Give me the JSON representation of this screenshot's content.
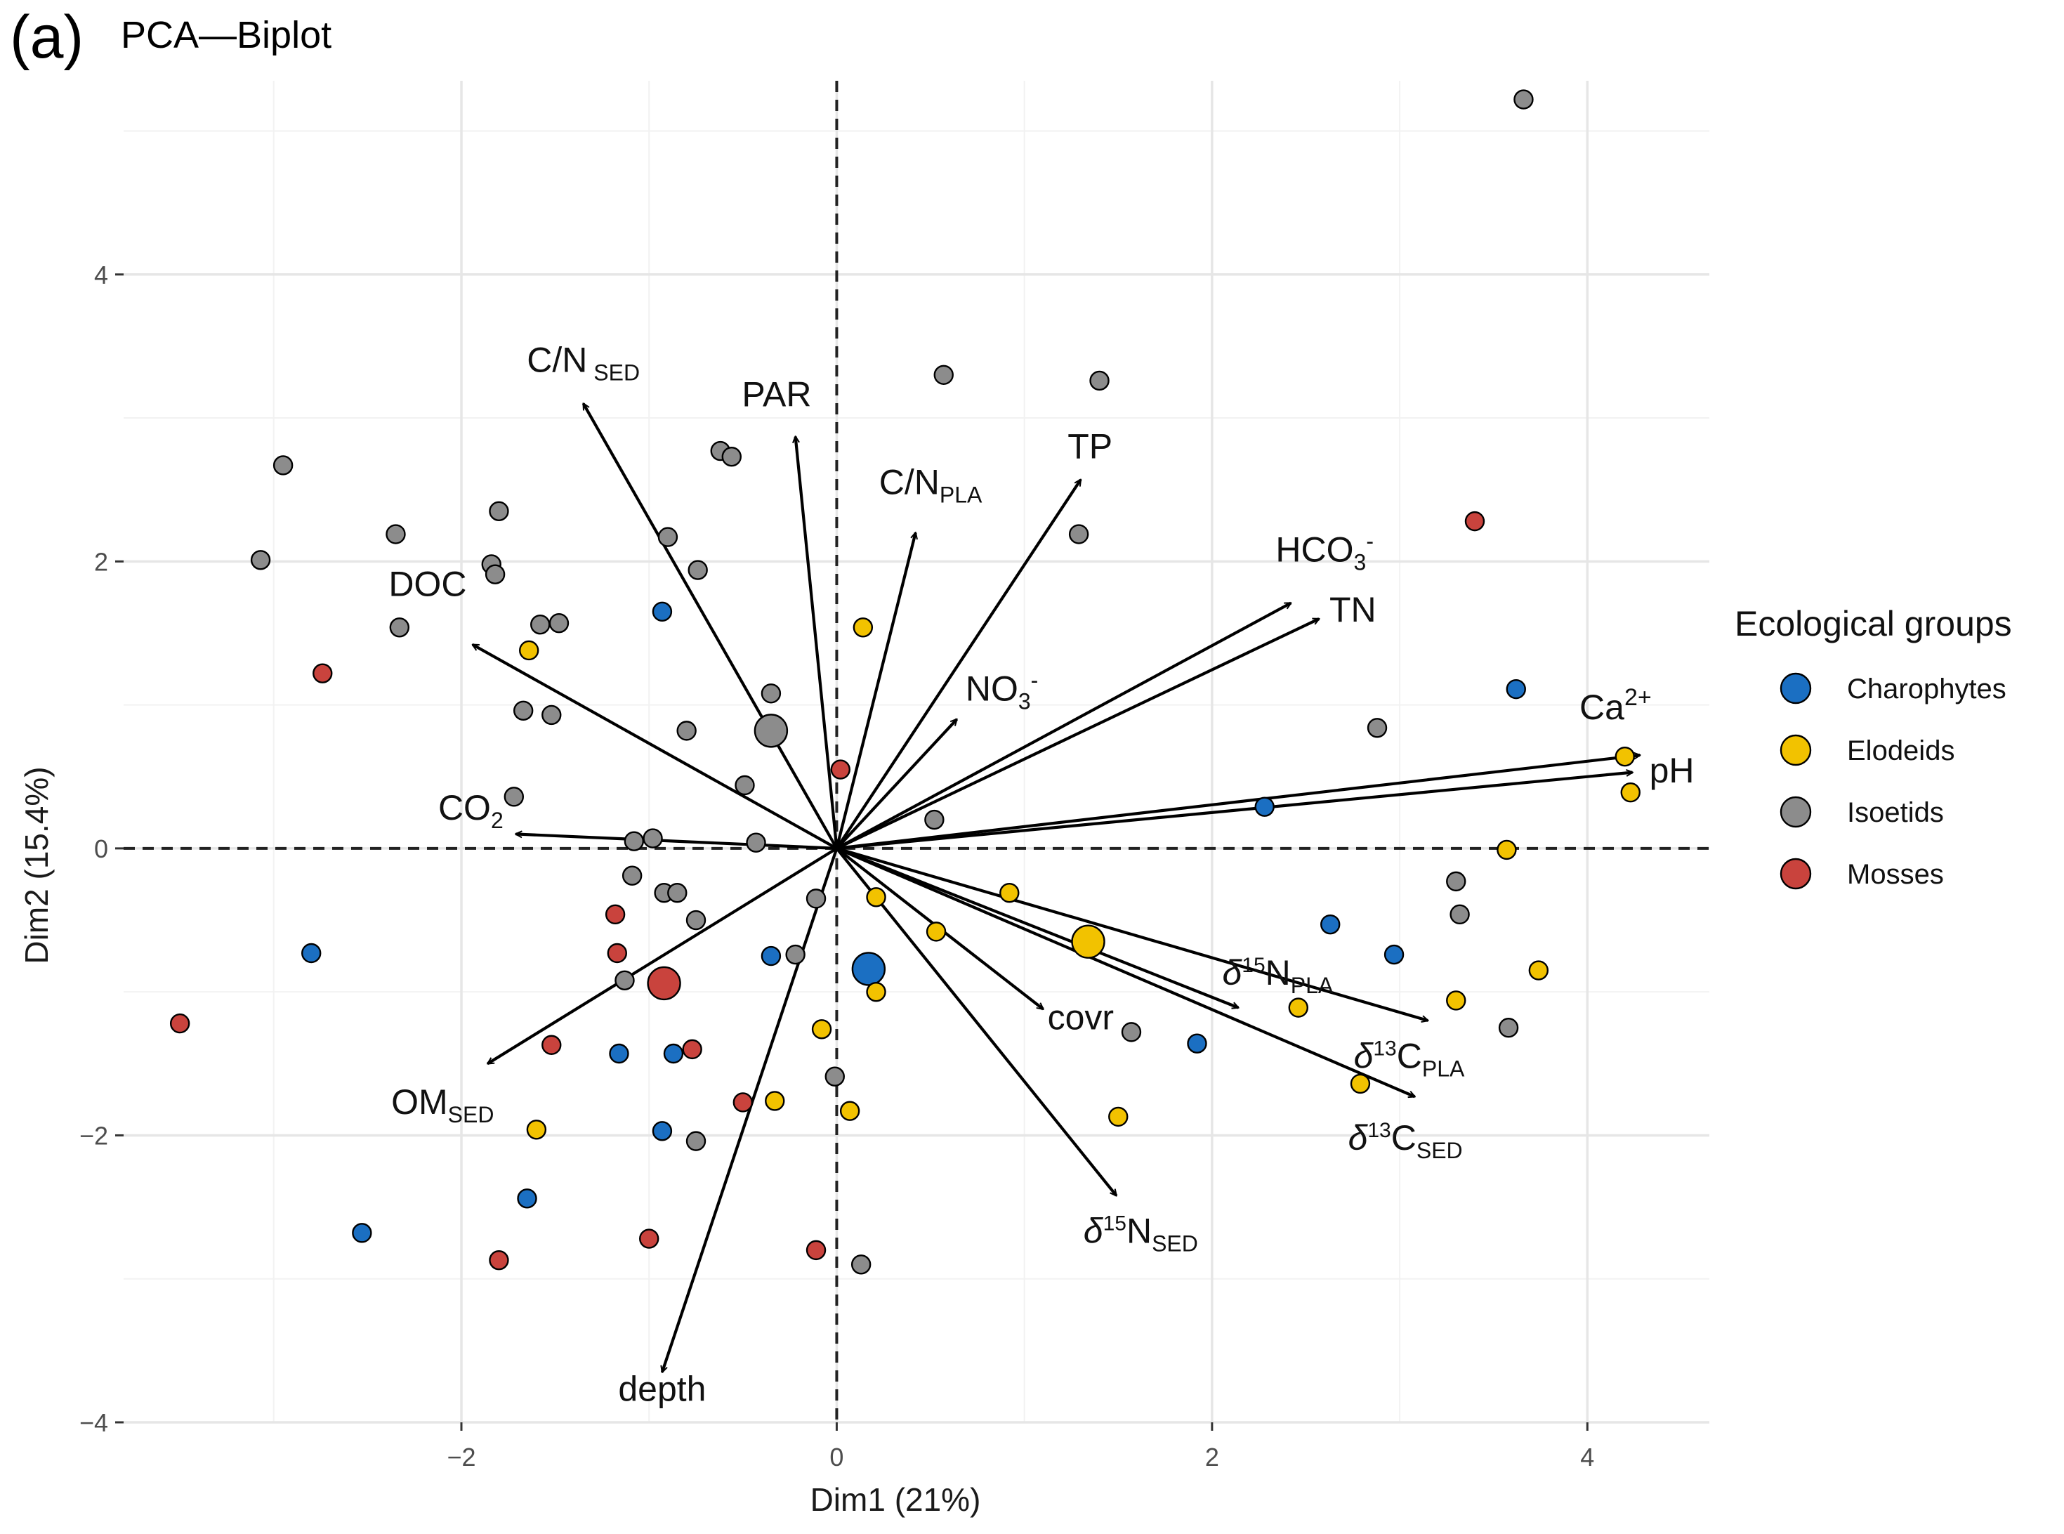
{
  "chart_data": {
    "type": "scatter",
    "panel_label": "(a)",
    "title": "PCA—Biplot",
    "xlabel": "Dim1 (21%)",
    "ylabel": "Dim2 (15.4%)",
    "xlim": [
      -3.8,
      4.65
    ],
    "ylim": [
      -4.0,
      5.35
    ],
    "xticks": [
      -2,
      0,
      2,
      4
    ],
    "yticks": [
      -4,
      -2,
      0,
      2,
      4
    ],
    "tick_labels_x": [
      "−2",
      "0",
      "2",
      "4"
    ],
    "tick_labels_y": [
      "−4",
      "−2",
      "0",
      "2",
      "4"
    ],
    "grid": true,
    "reference_lines": {
      "x": 0,
      "y": 0,
      "style": "dashed"
    },
    "legend": {
      "title": "Ecological groups",
      "placement": "right",
      "entries": [
        {
          "name": "Charophytes",
          "color": "#1b6fc2"
        },
        {
          "name": "Elodeids",
          "color": "#f2c200"
        },
        {
          "name": "Isoetids",
          "color": "#8c8c8c"
        },
        {
          "name": "Mosses",
          "color": "#c9433d"
        }
      ]
    },
    "vectors": [
      {
        "name": "C/N SED",
        "base": "C/N",
        "sub": "SED",
        "sup": "",
        "x": -1.35,
        "y": 3.1,
        "label_x": -1.35,
        "label_y": 3.32
      },
      {
        "name": "PAR",
        "base": "PAR",
        "sub": "",
        "sup": "",
        "x": -0.22,
        "y": 2.87,
        "label_x": -0.32,
        "label_y": 3.08
      },
      {
        "name": "C/NPLA",
        "base": "C/N",
        "sub": "PLA",
        "sup": "",
        "x": 0.42,
        "y": 2.2,
        "label_x": 0.5,
        "label_y": 2.47
      },
      {
        "name": "TP",
        "base": "TP",
        "sub": "",
        "sup": "",
        "x": 1.3,
        "y": 2.57,
        "label_x": 1.35,
        "label_y": 2.72
      },
      {
        "name": "HCO3-",
        "base": "HCO",
        "sub": "3",
        "sup": "-",
        "x": 2.42,
        "y": 1.71,
        "label_x": 2.6,
        "label_y": 2.0
      },
      {
        "name": "TN",
        "base": "TN",
        "sub": "",
        "sup": "",
        "x": 2.57,
        "y": 1.6,
        "label_x": 2.75,
        "label_y": 1.58
      },
      {
        "name": "NO3-",
        "base": "NO",
        "sub": "3",
        "sup": "-",
        "x": 0.64,
        "y": 0.9,
        "label_x": 0.88,
        "label_y": 1.03
      },
      {
        "name": "Ca2+",
        "base": "Ca",
        "sub": "",
        "sup": "2+",
        "x": 4.28,
        "y": 0.65,
        "label_x": 4.15,
        "label_y": 0.9
      },
      {
        "name": "pH",
        "base": "pH",
        "sub": "",
        "sup": "",
        "x": 4.24,
        "y": 0.53,
        "label_x": 4.45,
        "label_y": 0.46
      },
      {
        "name": "DOC",
        "base": "DOC",
        "sub": "",
        "sup": "",
        "x": -1.94,
        "y": 1.42,
        "label_x": -2.18,
        "label_y": 1.76
      },
      {
        "name": "CO2",
        "base": "CO",
        "sub": "2",
        "sup": "",
        "x": -1.71,
        "y": 0.1,
        "label_x": -1.95,
        "label_y": 0.2
      },
      {
        "name": "OMSED",
        "base": "OM",
        "sub": "SED",
        "sup": "",
        "x": -1.86,
        "y": -1.5,
        "label_x": -2.1,
        "label_y": -1.85
      },
      {
        "name": "depth",
        "base": "depth",
        "sub": "",
        "sup": "",
        "x": -0.93,
        "y": -3.65,
        "label_x": -0.93,
        "label_y": -3.85
      },
      {
        "name": "covr",
        "base": "covr",
        "sub": "",
        "sup": "",
        "x": 1.1,
        "y": -1.12,
        "label_x": 1.3,
        "label_y": -1.26
      },
      {
        "name": "δ15NPLA",
        "base": "N",
        "sub": "PLA",
        "sup": "15",
        "pre": "δ",
        "x": 2.14,
        "y": -1.11,
        "label_x": 2.35,
        "label_y": -0.95
      },
      {
        "name": "δ13CPLA",
        "base": "C",
        "sub": "PLA",
        "sup": "13",
        "pre": "δ",
        "x": 3.15,
        "y": -1.2,
        "label_x": 3.05,
        "label_y": -1.53
      },
      {
        "name": "δ13CSED",
        "base": "C",
        "sub": "SED",
        "sup": "13",
        "pre": "δ",
        "x": 3.08,
        "y": -1.73,
        "label_x": 3.03,
        "label_y": -2.1
      },
      {
        "name": "δ15NSED",
        "base": "N",
        "sub": "SED",
        "sup": "15",
        "pre": "δ",
        "x": 1.49,
        "y": -2.42,
        "label_x": 1.62,
        "label_y": -2.75
      }
    ],
    "series": [
      {
        "name": "Charophytes",
        "points": [
          [
            -0.93,
            1.65
          ],
          [
            -0.35,
            -0.75
          ],
          [
            -0.87,
            -1.43
          ],
          [
            -1.16,
            -1.43
          ],
          [
            -0.93,
            -1.97
          ],
          [
            -1.65,
            -2.44
          ],
          [
            -2.53,
            -2.68
          ],
          [
            -2.8,
            -0.73
          ],
          [
            1.92,
            -1.36
          ],
          [
            2.28,
            0.29
          ],
          [
            2.63,
            -0.53
          ],
          [
            2.97,
            -0.74
          ],
          [
            3.62,
            1.11
          ]
        ],
        "centroid": [
          0.17,
          -0.84
        ]
      },
      {
        "name": "Elodeids",
        "points": [
          [
            0.14,
            1.54
          ],
          [
            -1.64,
            1.38
          ],
          [
            0.21,
            -0.34
          ],
          [
            0.92,
            -0.31
          ],
          [
            0.53,
            -0.58
          ],
          [
            0.21,
            -1.0
          ],
          [
            -0.08,
            -1.26
          ],
          [
            -0.33,
            -1.76
          ],
          [
            0.07,
            -1.83
          ],
          [
            -1.6,
            -1.96
          ],
          [
            1.5,
            -1.87
          ],
          [
            2.46,
            -1.11
          ],
          [
            2.79,
            -1.64
          ],
          [
            3.3,
            -1.06
          ],
          [
            3.57,
            -0.01
          ],
          [
            3.74,
            -0.85
          ],
          [
            4.2,
            0.64
          ],
          [
            4.23,
            0.39
          ]
        ],
        "centroid": [
          1.34,
          -0.65
        ]
      },
      {
        "name": "Isoetids",
        "points": [
          [
            3.66,
            5.22
          ],
          [
            0.57,
            3.3
          ],
          [
            1.4,
            3.26
          ],
          [
            -0.62,
            2.77
          ],
          [
            -0.56,
            2.73
          ],
          [
            -2.95,
            2.67
          ],
          [
            -1.8,
            2.35
          ],
          [
            -2.35,
            2.19
          ],
          [
            -0.9,
            2.17
          ],
          [
            -3.07,
            2.01
          ],
          [
            -1.84,
            1.98
          ],
          [
            -1.82,
            1.91
          ],
          [
            -0.74,
            1.94
          ],
          [
            1.29,
            2.19
          ],
          [
            -2.33,
            1.54
          ],
          [
            -1.58,
            1.56
          ],
          [
            -1.48,
            1.57
          ],
          [
            -1.67,
            0.96
          ],
          [
            -1.52,
            0.93
          ],
          [
            -0.8,
            0.82
          ],
          [
            -0.35,
            1.08
          ],
          [
            -0.49,
            0.44
          ],
          [
            -1.72,
            0.36
          ],
          [
            -1.08,
            0.05
          ],
          [
            -0.98,
            0.07
          ],
          [
            -0.43,
            0.04
          ],
          [
            0.52,
            0.2
          ],
          [
            2.88,
            0.84
          ],
          [
            -1.09,
            -0.19
          ],
          [
            -0.92,
            -0.31
          ],
          [
            -0.85,
            -0.31
          ],
          [
            -0.75,
            -0.5
          ],
          [
            -0.11,
            -0.35
          ],
          [
            -0.22,
            -0.74
          ],
          [
            -1.13,
            -0.92
          ],
          [
            -0.01,
            -1.59
          ],
          [
            -0.75,
            -2.04
          ],
          [
            0.13,
            -2.9
          ],
          [
            1.57,
            -1.28
          ],
          [
            3.3,
            -0.23
          ],
          [
            3.32,
            -0.46
          ],
          [
            3.58,
            -1.25
          ]
        ],
        "centroid": [
          -0.35,
          0.82
        ]
      },
      {
        "name": "Mosses",
        "points": [
          [
            0.02,
            0.55
          ],
          [
            -2.74,
            1.22
          ],
          [
            3.4,
            2.28
          ],
          [
            -1.18,
            -0.46
          ],
          [
            -1.17,
            -0.73
          ],
          [
            -1.52,
            -1.37
          ],
          [
            -0.77,
            -1.4
          ],
          [
            -0.5,
            -1.77
          ],
          [
            -1.0,
            -2.72
          ],
          [
            -1.8,
            -2.87
          ],
          [
            -0.11,
            -2.8
          ],
          [
            -3.5,
            -1.22
          ]
        ],
        "centroid": [
          -0.92,
          -0.94
        ]
      }
    ]
  }
}
